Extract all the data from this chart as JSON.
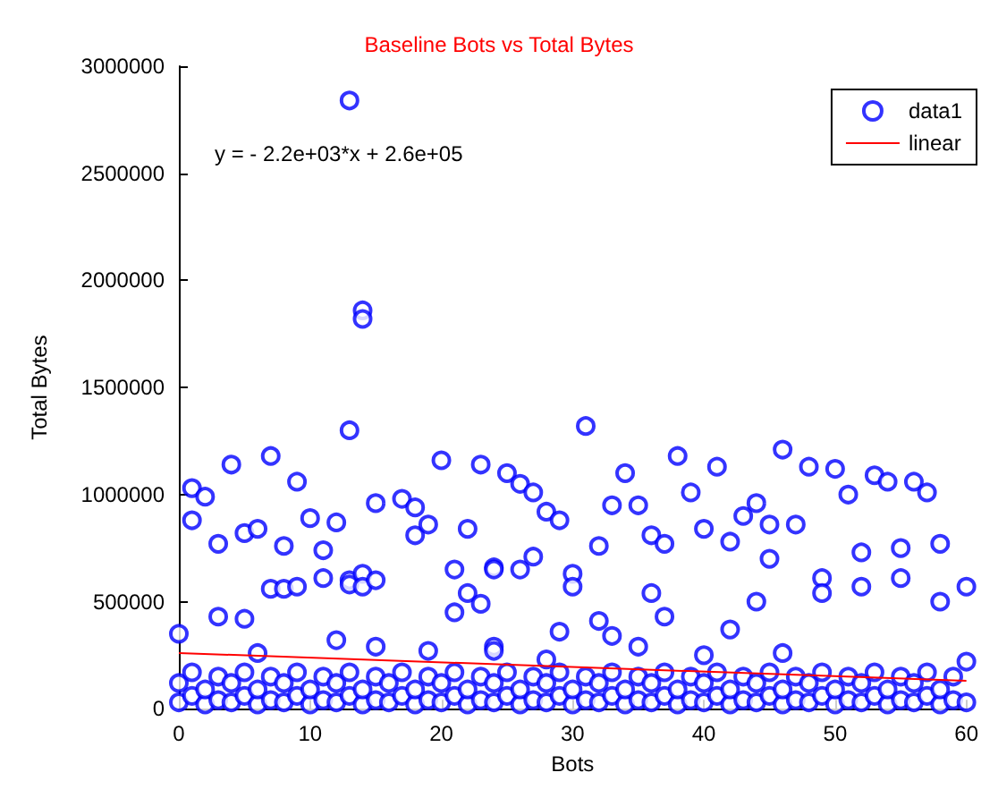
{
  "chart_data": {
    "type": "scatter",
    "title": "Baseline Bots vs Total Bytes",
    "xlabel": "Bots",
    "ylabel": "Total Bytes",
    "annotations": [
      "y = - 2.2e+03*x + 2.6e+05"
    ],
    "xlim": [
      0,
      60
    ],
    "xticks": [
      0,
      10,
      20,
      30,
      40,
      50,
      60
    ],
    "ylim": [
      0,
      3000000
    ],
    "yticks": [
      0,
      500000,
      1000000,
      1500000,
      2000000,
      2500000,
      3000000
    ],
    "legend": "top right",
    "series": [
      {
        "name": "data1",
        "color": "#0000ff",
        "marker": "circle",
        "x": [
          0,
          1,
          1,
          2,
          3,
          3,
          4,
          5,
          5,
          6,
          6,
          7,
          7,
          8,
          8,
          9,
          9,
          10,
          11,
          11,
          12,
          12,
          13,
          13,
          13,
          13,
          14,
          14,
          14,
          14,
          15,
          15,
          15,
          17,
          18,
          18,
          19,
          19,
          20,
          21,
          21,
          22,
          22,
          23,
          23,
          24,
          24,
          24,
          24,
          25,
          26,
          26,
          27,
          27,
          28,
          28,
          29,
          29,
          30,
          30,
          31,
          32,
          32,
          33,
          33,
          34,
          35,
          35,
          36,
          36,
          37,
          37,
          38,
          39,
          40,
          40,
          41,
          42,
          42,
          43,
          44,
          44,
          45,
          45,
          46,
          46,
          47,
          48,
          49,
          49,
          50,
          51,
          52,
          52,
          53,
          54,
          55,
          55,
          56,
          57,
          58,
          58,
          60,
          0,
          0,
          1,
          1,
          2,
          2,
          3,
          3,
          4,
          4,
          5,
          5,
          6,
          6,
          7,
          7,
          8,
          8,
          9,
          9,
          10,
          10,
          11,
          11,
          12,
          12,
          13,
          13,
          14,
          14,
          15,
          15,
          16,
          16,
          17,
          17,
          18,
          18,
          19,
          19,
          20,
          20,
          21,
          21,
          22,
          22,
          23,
          23,
          24,
          24,
          25,
          25,
          26,
          26,
          27,
          27,
          28,
          28,
          29,
          29,
          30,
          30,
          31,
          31,
          32,
          32,
          33,
          33,
          34,
          34,
          35,
          35,
          36,
          36,
          37,
          37,
          38,
          38,
          39,
          39,
          40,
          40,
          41,
          41,
          42,
          42,
          43,
          43,
          44,
          44,
          45,
          45,
          46,
          46,
          47,
          47,
          48,
          48,
          49,
          49,
          50,
          50,
          51,
          51,
          52,
          52,
          53,
          53,
          54,
          54,
          55,
          55,
          56,
          56,
          57,
          57,
          58,
          58,
          59,
          59,
          60,
          60
        ],
        "values": [
          350000,
          1030000,
          880000,
          990000,
          770000,
          430000,
          1140000,
          820000,
          420000,
          840000,
          260000,
          1180000,
          560000,
          760000,
          560000,
          1060000,
          570000,
          890000,
          740000,
          610000,
          870000,
          320000,
          2840000,
          1300000,
          600000,
          580000,
          1860000,
          1820000,
          630000,
          570000,
          960000,
          600000,
          290000,
          980000,
          940000,
          810000,
          860000,
          270000,
          1160000,
          650000,
          450000,
          840000,
          540000,
          1140000,
          490000,
          660000,
          650000,
          290000,
          270000,
          1100000,
          1050000,
          650000,
          1010000,
          710000,
          920000,
          230000,
          880000,
          360000,
          630000,
          570000,
          1320000,
          760000,
          410000,
          950000,
          340000,
          1100000,
          950000,
          290000,
          810000,
          540000,
          770000,
          430000,
          1180000,
          1010000,
          840000,
          250000,
          1130000,
          780000,
          370000,
          900000,
          960000,
          500000,
          860000,
          700000,
          1210000,
          260000,
          860000,
          1130000,
          610000,
          540000,
          1120000,
          1000000,
          730000,
          570000,
          1090000,
          1060000,
          750000,
          610000,
          1060000,
          1010000,
          770000,
          500000,
          570000,
          30000,
          120000,
          60000,
          170000,
          20000,
          90000,
          40000,
          150000,
          30000,
          120000,
          60000,
          170000,
          20000,
          90000,
          40000,
          150000,
          30000,
          120000,
          60000,
          170000,
          20000,
          90000,
          40000,
          150000,
          30000,
          120000,
          60000,
          170000,
          20000,
          90000,
          40000,
          150000,
          30000,
          120000,
          60000,
          170000,
          20000,
          90000,
          40000,
          150000,
          30000,
          120000,
          60000,
          170000,
          20000,
          90000,
          40000,
          150000,
          30000,
          120000,
          60000,
          170000,
          20000,
          90000,
          40000,
          150000,
          30000,
          120000,
          60000,
          170000,
          20000,
          90000,
          40000,
          150000,
          30000,
          120000,
          60000,
          170000,
          20000,
          90000,
          40000,
          150000,
          30000,
          120000,
          60000,
          170000,
          20000,
          90000,
          40000,
          150000,
          30000,
          120000,
          60000,
          170000,
          20000,
          90000,
          40000,
          150000,
          30000,
          120000,
          60000,
          170000,
          20000,
          90000,
          40000,
          150000,
          30000,
          120000,
          60000,
          170000,
          20000,
          90000,
          40000,
          150000,
          30000,
          120000,
          60000,
          170000,
          20000,
          90000,
          40000,
          150000,
          30000,
          120000,
          60000,
          170000,
          20000,
          90000,
          40000,
          150000,
          30000,
          220000
        ]
      },
      {
        "name": "linear",
        "type": "line",
        "marker": "none",
        "color": "#ff0000",
        "x": [
          0,
          60
        ],
        "values": [
          260000,
          130000
        ]
      }
    ]
  }
}
